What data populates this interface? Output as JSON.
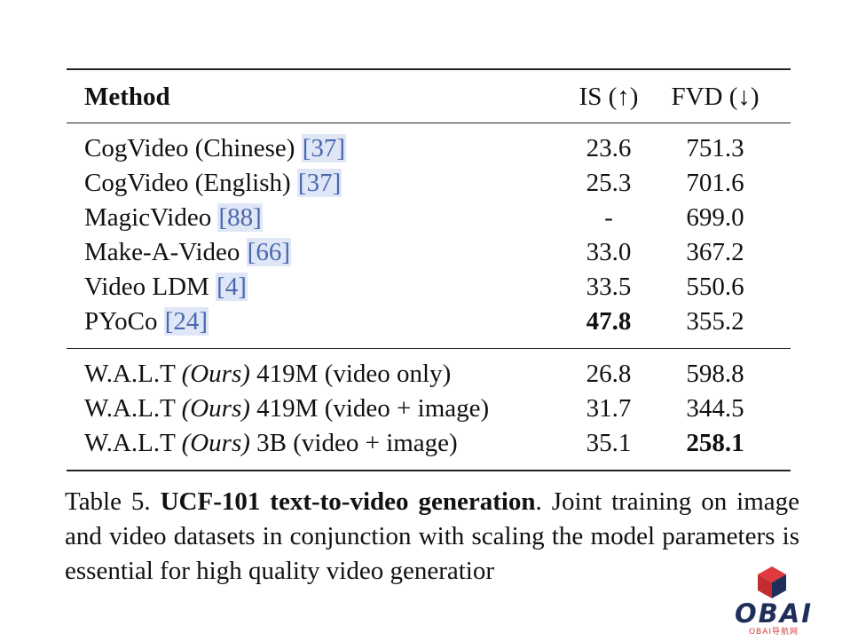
{
  "table": {
    "header": {
      "method": "Method",
      "is": "IS (↑)",
      "fvd": "FVD (↓)"
    },
    "group1": [
      {
        "name": "CogVideo (Chinese) ",
        "ref": "[37]",
        "is": "23.6",
        "fvd": "751.3"
      },
      {
        "name": "CogVideo (English) ",
        "ref": "[37]",
        "is": "25.3",
        "fvd": "701.6"
      },
      {
        "name": "MagicVideo ",
        "ref": "[88]",
        "is": "-",
        "fvd": "699.0"
      },
      {
        "name": "Make-A-Video ",
        "ref": "[66]",
        "is": "33.0",
        "fvd": "367.2"
      },
      {
        "name": "Video LDM ",
        "ref": "[4]",
        "is": "33.5",
        "fvd": "550.6"
      },
      {
        "name": "PYoCo ",
        "ref": "[24]",
        "is": "47.8",
        "fvd": "355.2"
      }
    ],
    "group2": [
      {
        "prefix": "W.A.L.T ",
        "ours": "(Ours)",
        "suffix": " 419M (video only)",
        "is": "26.8",
        "fvd": "598.8"
      },
      {
        "prefix": "W.A.L.T ",
        "ours": "(Ours)",
        "suffix": " 419M (video + image)",
        "is": "31.7",
        "fvd": "344.5"
      },
      {
        "prefix": "W.A.L.T ",
        "ours": "(Ours)",
        "suffix": " 3B (video + image)",
        "is": "35.1",
        "fvd": "258.1"
      }
    ]
  },
  "caption": {
    "label": "Table 5. ",
    "title": "UCF-101 text-to-video generation",
    "text": ". Joint training on image and video datasets in conjunction with scaling the model parameters is essential for high quality video generatior"
  },
  "watermark": {
    "text": "OBAI",
    "sub": "OBAI导航网",
    "cube_red": "#e0393e",
    "cube_navy": "#1f2f5a"
  }
}
